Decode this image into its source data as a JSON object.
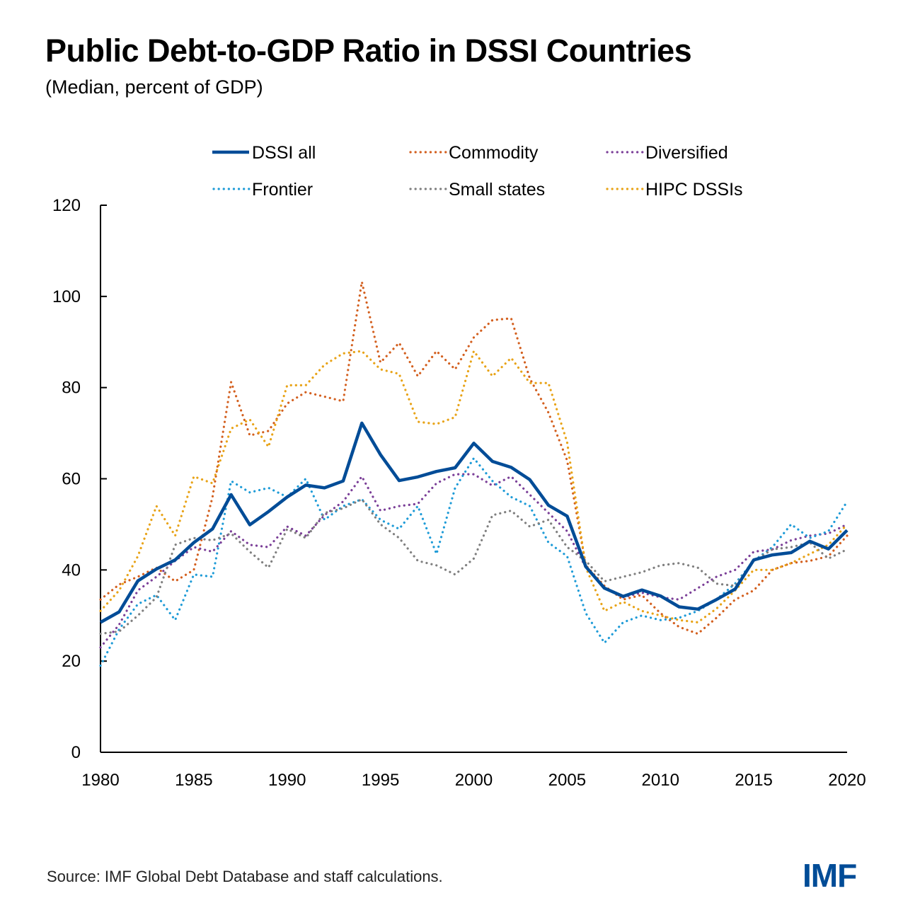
{
  "title": "Public Debt-to-GDP Ratio in DSSI Countries",
  "subtitle": "(Median, percent of GDP)",
  "source": "Source: IMF Global Debt Database and staff calculations.",
  "logo": "IMF",
  "chart_data": {
    "type": "line",
    "title": "Public Debt-to-GDP Ratio in DSSI Countries",
    "subtitle": "(Median, percent of GDP)",
    "xlabel": "",
    "ylabel": "",
    "xlim": [
      1980,
      2020
    ],
    "ylim": [
      0,
      120
    ],
    "yticks": [
      0,
      20,
      40,
      60,
      80,
      100,
      120
    ],
    "xticks": [
      1980,
      1985,
      1990,
      1995,
      2000,
      2005,
      2010,
      2015,
      2020
    ],
    "grid": false,
    "legend_position": "top",
    "x": [
      1980,
      1981,
      1982,
      1983,
      1984,
      1985,
      1986,
      1987,
      1988,
      1989,
      1990,
      1991,
      1992,
      1993,
      1994,
      1995,
      1996,
      1997,
      1998,
      1999,
      2000,
      2001,
      2002,
      2003,
      2004,
      2005,
      2006,
      2007,
      2008,
      2009,
      2010,
      2011,
      2012,
      2013,
      2014,
      2015,
      2016,
      2017,
      2018,
      2019,
      2020
    ],
    "series": [
      {
        "name": "DSSI all",
        "color": "#004c97",
        "style": "solid",
        "values": [
          28.5,
          30.8,
          37.6,
          40.2,
          42.2,
          46.0,
          49.0,
          56.5,
          49.9,
          52.8,
          56.0,
          58.6,
          58.0,
          59.5,
          72.2,
          65.3,
          59.6,
          60.4,
          61.6,
          62.4,
          67.8,
          63.8,
          62.5,
          59.8,
          54.2,
          51.8,
          40.7,
          36.0,
          34.2,
          35.6,
          34.3,
          31.9,
          31.4,
          33.5,
          35.8,
          42.2,
          43.3,
          43.8,
          46.3,
          44.6,
          48.7
        ]
      },
      {
        "name": "Commodity",
        "color": "#d35f1e",
        "style": "dotted",
        "values": [
          33.5,
          36.8,
          38.5,
          40.5,
          37.5,
          40.0,
          56.0,
          81.2,
          69.5,
          70.5,
          76.5,
          79.0,
          78.0,
          77.0,
          103.2,
          85.5,
          89.8,
          82.5,
          88.0,
          84.0,
          91.0,
          94.8,
          95.2,
          82.0,
          74.5,
          64.0,
          41.0,
          36.5,
          33.5,
          34.5,
          30.5,
          27.5,
          26.0,
          29.5,
          33.5,
          35.5,
          40.0,
          41.5,
          42.0,
          43.0,
          47.5
        ]
      },
      {
        "name": "Diversified",
        "color": "#7b3f98",
        "style": "dotted",
        "values": [
          23.0,
          28.0,
          35.5,
          38.5,
          42.0,
          45.0,
          44.0,
          48.5,
          45.5,
          45.0,
          49.5,
          47.5,
          52.0,
          55.0,
          60.5,
          53.0,
          54.0,
          54.5,
          59.0,
          61.0,
          61.0,
          58.5,
          60.5,
          56.5,
          52.5,
          48.5,
          40.5,
          36.0,
          34.0,
          35.0,
          34.0,
          33.5,
          36.0,
          38.5,
          40.0,
          44.0,
          44.5,
          46.5,
          47.5,
          48.0,
          50.0
        ]
      },
      {
        "name": "Frontier",
        "color": "#1e9bd7",
        "style": "dotted",
        "values": [
          19.0,
          27.0,
          32.5,
          34.5,
          29.0,
          39.0,
          38.5,
          59.5,
          57.0,
          58.0,
          56.0,
          60.0,
          51.0,
          54.0,
          55.5,
          51.0,
          49.0,
          54.0,
          43.5,
          58.0,
          64.5,
          59.5,
          56.0,
          54.0,
          46.0,
          43.0,
          30.5,
          24.0,
          28.5,
          30.0,
          29.0,
          29.5,
          31.0,
          33.5,
          37.0,
          42.0,
          45.0,
          50.0,
          47.0,
          48.5,
          55.0
        ]
      },
      {
        "name": "Small states",
        "color": "#7f7f7f",
        "style": "dotted",
        "values": [
          26.0,
          26.5,
          30.0,
          34.0,
          45.5,
          47.0,
          46.5,
          48.0,
          44.0,
          40.5,
          49.0,
          47.0,
          52.5,
          53.5,
          55.5,
          50.0,
          47.0,
          42.0,
          41.0,
          39.0,
          42.5,
          52.0,
          53.0,
          49.5,
          51.0,
          45.0,
          42.0,
          37.5,
          38.5,
          39.5,
          41.0,
          41.5,
          40.5,
          37.0,
          36.5,
          42.0,
          44.5,
          45.0,
          46.0,
          42.5,
          44.5
        ]
      },
      {
        "name": "HIPC DSSIs",
        "color": "#e8a317",
        "style": "dotted",
        "values": [
          31.0,
          35.5,
          43.0,
          54.0,
          47.5,
          60.5,
          59.0,
          71.0,
          73.0,
          67.0,
          80.5,
          80.5,
          85.0,
          87.5,
          88.0,
          84.0,
          83.0,
          72.5,
          72.0,
          73.5,
          88.0,
          82.5,
          86.5,
          81.0,
          81.0,
          68.0,
          40.5,
          31.0,
          33.0,
          31.0,
          30.0,
          29.0,
          28.5,
          31.5,
          35.5,
          40.0,
          40.0,
          41.5,
          43.5,
          45.5,
          50.0
        ]
      }
    ]
  }
}
